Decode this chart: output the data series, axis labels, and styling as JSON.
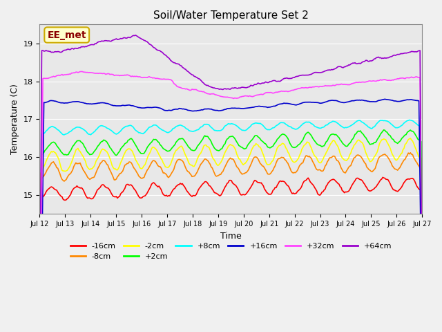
{
  "title": "Soil/Water Temperature Set 2",
  "xlabel": "Time",
  "ylabel": "Temperature (C)",
  "ylim": [
    14.5,
    19.5
  ],
  "xlim": [
    0,
    360
  ],
  "bg_color": "#e8e8e8",
  "annotation_text": "EE_met",
  "annotation_bg": "#ffffcc",
  "annotation_border": "#ccaa00",
  "x_tick_labels": [
    "Jul 12",
    "Jul 13",
    "Jul 14",
    "Jul 15",
    "Jul 16",
    "Jul 17",
    "Jul 18",
    "Jul 19",
    "Jul 20",
    "Jul 21",
    "Jul 22",
    "Jul 23",
    "Jul 24",
    "Jul 25",
    "Jul 26",
    "Jul 27"
  ],
  "series": {
    "-16cm": {
      "color": "#ff0000",
      "lw": 1.2
    },
    "-8cm": {
      "color": "#ff8800",
      "lw": 1.2
    },
    "-2cm": {
      "color": "#ffff00",
      "lw": 1.2
    },
    "+2cm": {
      "color": "#00ff00",
      "lw": 1.2
    },
    "+8cm": {
      "color": "#00ffff",
      "lw": 1.2
    },
    "+16cm": {
      "color": "#0000cc",
      "lw": 1.2
    },
    "+32cm": {
      "color": "#ff44ff",
      "lw": 1.2
    },
    "+64cm": {
      "color": "#9900cc",
      "lw": 1.2
    }
  }
}
